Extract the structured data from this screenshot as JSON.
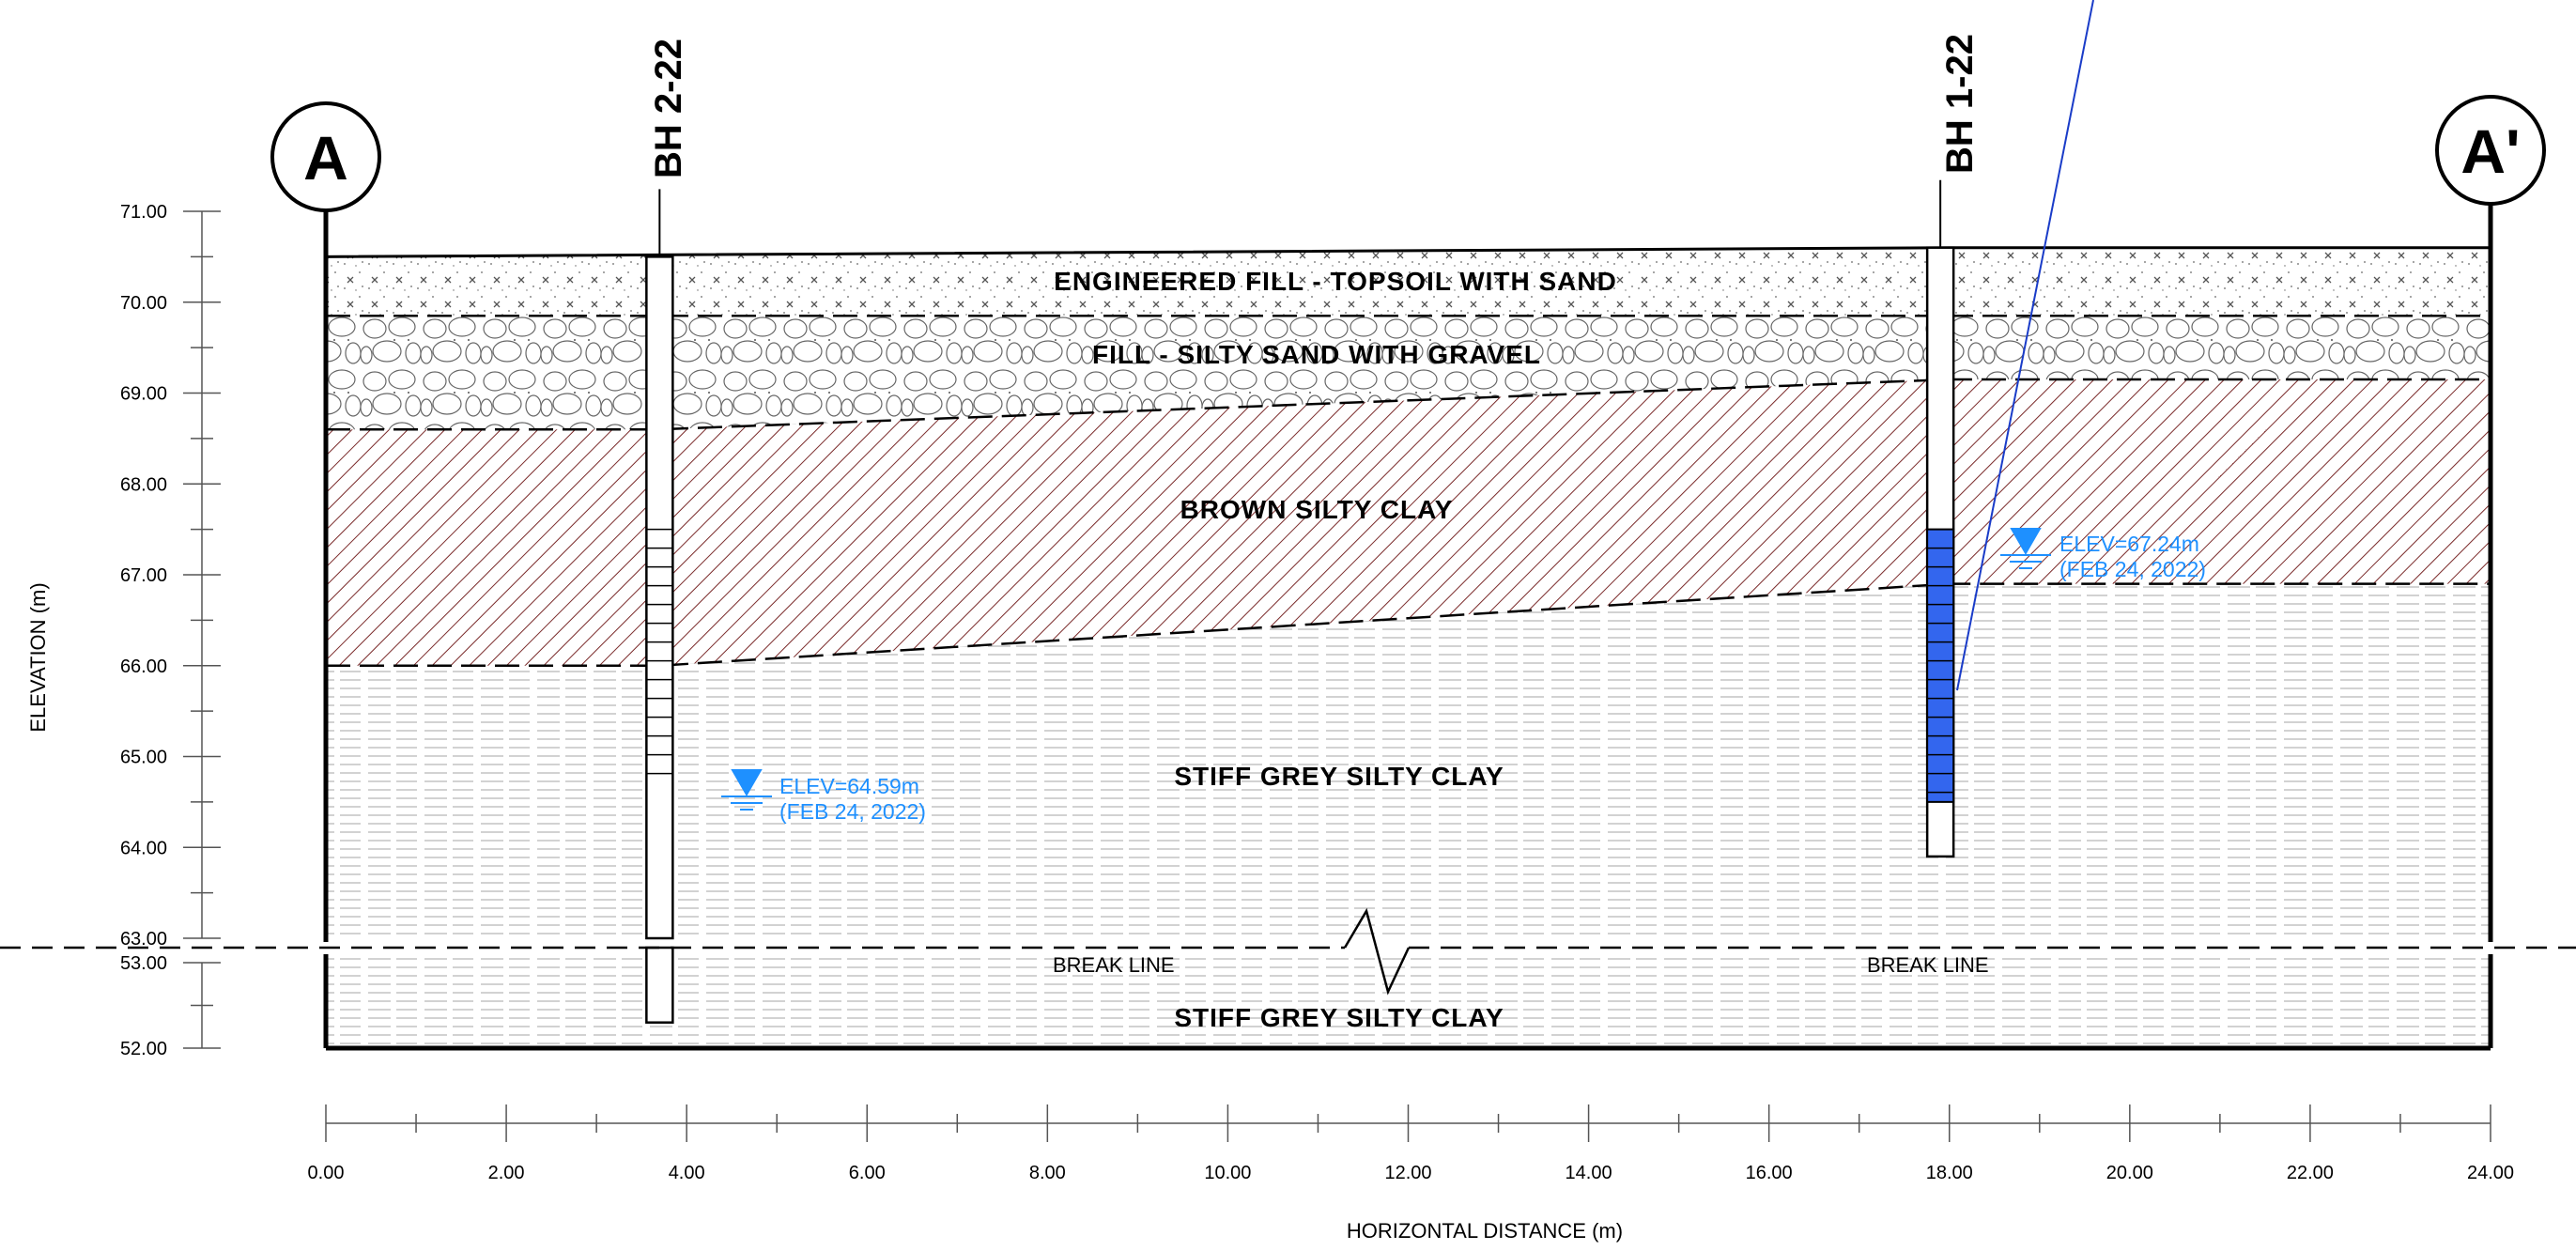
{
  "section": {
    "start_label": "A",
    "end_label": "A'"
  },
  "y_axis": {
    "title": "ELEVATION (m)",
    "upper_ticks": [
      "71.00",
      "70.00",
      "69.00",
      "68.00",
      "67.00",
      "66.00",
      "65.00",
      "64.00",
      "63.00"
    ],
    "lower_ticks": [
      "53.00",
      "52.00"
    ]
  },
  "x_axis": {
    "title": "HORIZONTAL DISTANCE (m)",
    "ticks": [
      "0.00",
      "2.00",
      "4.00",
      "6.00",
      "8.00",
      "10.00",
      "12.00",
      "14.00",
      "16.00",
      "18.00",
      "20.00",
      "22.00",
      "24.00"
    ]
  },
  "layers": [
    {
      "label": "ENGINEERED FILL - TOPSOIL WITH SAND"
    },
    {
      "label": "FILL - SILTY SAND WITH GRAVEL"
    },
    {
      "label": "BROWN SILTY CLAY"
    },
    {
      "label": "STIFF GREY SILTY CLAY"
    },
    {
      "label": "STIFF GREY SILTY CLAY"
    }
  ],
  "boreholes": [
    {
      "name": "BH 2-22",
      "water_level": "ELEV=64.59m",
      "water_date": "(FEB 24, 2022)"
    },
    {
      "name": "BH 1-22",
      "water_level": "ELEV=67.24m",
      "water_date": "(FEB 24, 2022)"
    }
  ],
  "break_line": {
    "left_label": "BREAK LINE",
    "right_label": "BREAK LINE"
  },
  "colors": {
    "water": "#1e90ff",
    "screen": "#3366ee",
    "clay_hatch": "#7a2a2a",
    "grey_clay": "#bfbfbf"
  },
  "chart_data": {
    "type": "cross-section",
    "x_unit": "m",
    "y_unit": "m",
    "xlim": [
      0,
      24
    ],
    "ylim_upper": [
      63,
      71
    ],
    "ylim_lower": [
      52,
      53
    ],
    "ground_surface": [
      [
        0,
        70.5
      ],
      [
        18,
        70.6
      ],
      [
        24,
        70.6
      ]
    ],
    "fill_base": [
      [
        0,
        69.85
      ],
      [
        24,
        69.85
      ]
    ],
    "brown_clay_top": [
      [
        0,
        68.6
      ],
      [
        3.7,
        68.6
      ],
      [
        18,
        69.15
      ],
      [
        24,
        69.15
      ]
    ],
    "brown_clay_base": [
      [
        0,
        66.0
      ],
      [
        3.7,
        66.0
      ],
      [
        18,
        66.9
      ],
      [
        24,
        66.9
      ]
    ],
    "boreholes": [
      {
        "name": "BH 2-22",
        "x": 3.7,
        "top": 70.5,
        "bottom_upper": 63.0,
        "bottom_lower": 52.3,
        "screen_top": 67.5,
        "screen_bottom": 64.8,
        "water_elev": 64.59
      },
      {
        "name": "BH 1-22",
        "x": 17.9,
        "top": 70.6,
        "bottom": 63.9,
        "screen_top": 67.5,
        "screen_bottom": 64.5,
        "water_elev": 67.24
      }
    ]
  }
}
